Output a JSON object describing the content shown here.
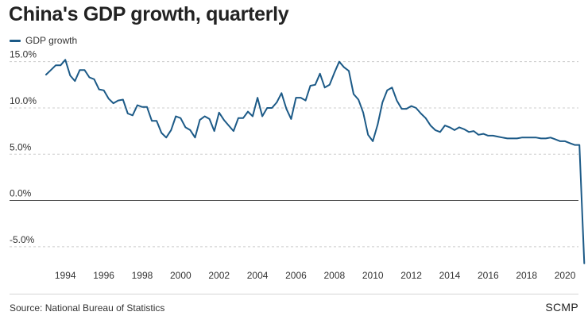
{
  "title": "China's GDP growth, quarterly",
  "source": "Source: National Bureau of Statistics",
  "brand": "SCMP",
  "colors": {
    "line": "#1c5a87",
    "grid": "#cccccc",
    "zero": "#444444",
    "axis_text": "#333333"
  },
  "chart_data": {
    "type": "line",
    "title": "China's GDP growth, quarterly",
    "xlabel": "",
    "ylabel": "",
    "xlim": [
      1992.75,
      2020.7
    ],
    "ylim": [
      -7.5,
      16.0
    ],
    "y_ticks": [
      15.0,
      10.0,
      5.0,
      0.0,
      -5.0
    ],
    "y_tick_labels": [
      "15.0%",
      "10.0%",
      "5.0%",
      "0.0%",
      "-5.0%"
    ],
    "x_ticks": [
      1994,
      1996,
      1998,
      2000,
      2002,
      2004,
      2006,
      2008,
      2010,
      2012,
      2014,
      2016,
      2018,
      2020
    ],
    "x_tick_labels": [
      "1994",
      "1996",
      "1998",
      "2000",
      "2002",
      "2004",
      "2006",
      "2008",
      "2010",
      "2012",
      "2014",
      "2016",
      "2018",
      "2020"
    ],
    "legend": [
      "GDP growth"
    ],
    "grid": "horizontal dashed",
    "series": [
      {
        "name": "GDP growth",
        "x_start": 1993.0,
        "x_step": 0.25,
        "values": [
          13.6,
          14.1,
          14.6,
          14.6,
          15.2,
          13.5,
          12.9,
          14.1,
          14.1,
          13.3,
          13.1,
          12.0,
          11.9,
          11.0,
          10.5,
          10.8,
          10.9,
          9.4,
          9.2,
          10.3,
          10.1,
          10.1,
          8.6,
          8.6,
          7.3,
          6.8,
          7.6,
          9.1,
          8.9,
          7.9,
          7.6,
          6.8,
          8.7,
          9.1,
          8.8,
          7.5,
          9.5,
          8.7,
          8.1,
          7.5,
          8.9,
          8.9,
          9.6,
          9.1,
          11.1,
          9.1,
          10.0,
          10.0,
          10.6,
          11.6,
          9.9,
          8.8,
          11.1,
          11.1,
          10.8,
          12.4,
          12.5,
          13.7,
          12.2,
          12.5,
          13.8,
          15.0,
          14.4,
          14.0,
          11.5,
          10.9,
          9.5,
          7.1,
          6.4,
          8.2,
          10.6,
          11.9,
          12.2,
          10.8,
          9.9,
          9.9,
          10.2,
          10.0,
          9.4,
          8.9,
          8.1,
          7.6,
          7.4,
          8.1,
          7.9,
          7.6,
          7.9,
          7.7,
          7.4,
          7.5,
          7.1,
          7.2,
          7.0,
          7.0,
          6.9,
          6.8,
          6.7,
          6.7,
          6.7,
          6.8,
          6.8,
          6.8,
          6.8,
          6.7,
          6.7,
          6.8,
          6.6,
          6.4,
          6.4,
          6.2,
          6.0,
          6.0,
          -6.8
        ]
      }
    ]
  }
}
